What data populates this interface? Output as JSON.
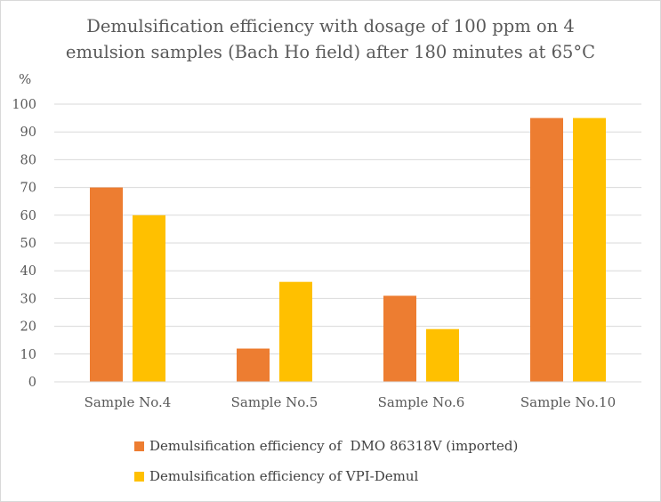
{
  "title_lines": [
    "Demulsification efficiency with dosage of 100 ppm on 4",
    "emulsion samples (Bach Ho field) after 180 minutes at 65°C"
  ],
  "ylabel": "%",
  "colors": {
    "series1": "#ED7D31",
    "series2": "#FFC000",
    "grid": "#d9d9d9",
    "text": "#595959"
  },
  "chart_data": {
    "type": "bar",
    "title": "Demulsification efficiency with dosage of 100 ppm on 4 emulsion samples (Bach Ho field) after 180 minutes at 65°C",
    "xlabel": "",
    "ylabel": "%",
    "ylim": [
      0,
      100
    ],
    "yticks": [
      0,
      10,
      20,
      30,
      40,
      50,
      60,
      70,
      80,
      90,
      100
    ],
    "grid": true,
    "legend_position": "bottom",
    "categories": [
      "Sample No.4",
      "Sample No.5",
      "Sample No.6",
      "Sample No.10"
    ],
    "series": [
      {
        "name": "Demulsification efficiency of  DMO 86318V (imported)",
        "values": [
          70,
          12,
          31,
          95
        ]
      },
      {
        "name": "Demulsification efficiency of VPI-Demul",
        "values": [
          60,
          36,
          19,
          95
        ]
      }
    ]
  }
}
